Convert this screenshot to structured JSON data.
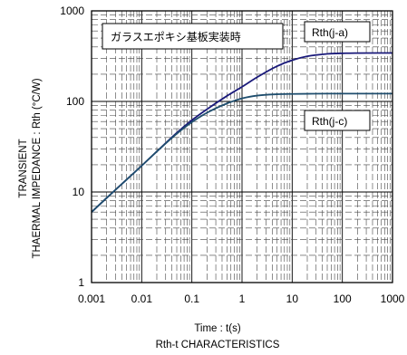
{
  "chart_data": {
    "type": "line",
    "xscale": "log",
    "yscale": "log",
    "xlim": [
      0.001,
      1000
    ],
    "ylim": [
      1,
      1000
    ],
    "grid": true,
    "xlabel": "Time : t(s)",
    "ylabel_line1": "TRANSIENT",
    "ylabel_line2": "THAERMAL IMPEDANCE : Rth (°C/W)",
    "caption": "Rth-t  CHARACTERISTICS",
    "annotation": "ガラスエポキシ基板実装時",
    "x_ticks": [
      "0.001",
      "0.01",
      "0.1",
      "1",
      "10",
      "100",
      "1000"
    ],
    "y_ticks": [
      "1",
      "10",
      "100",
      "1000"
    ],
    "series": [
      {
        "name": "Rth(j-a)",
        "color": "#1a1a7a",
        "x": [
          0.001,
          0.002,
          0.005,
          0.01,
          0.02,
          0.05,
          0.1,
          0.2,
          0.5,
          1,
          2,
          5,
          10,
          20,
          50,
          100,
          200,
          500,
          1000
        ],
        "y": [
          6,
          8.6,
          13.7,
          19.5,
          28,
          45,
          62,
          82,
          115,
          145,
          185,
          245,
          285,
          315,
          335,
          340,
          342,
          343,
          343
        ]
      },
      {
        "name": "Rth(j-c)",
        "color": "#1f4e6e",
        "x": [
          0.001,
          0.002,
          0.005,
          0.01,
          0.02,
          0.05,
          0.1,
          0.2,
          0.5,
          1,
          2,
          5,
          10,
          20,
          50,
          100,
          200,
          500,
          1000
        ],
        "y": [
          6,
          8.6,
          13.7,
          19.5,
          28,
          44,
          59,
          75,
          95,
          108,
          116,
          120,
          121,
          121.5,
          122,
          122,
          122,
          122,
          122
        ]
      }
    ]
  }
}
